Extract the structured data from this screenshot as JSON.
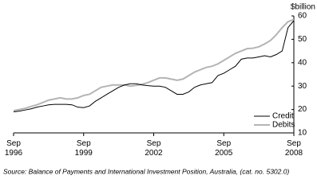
{
  "chart_data": {
    "type": "line",
    "unit_label": "$billion",
    "source": "Source: Balance of Payments and International Investment Position, Australia, (cat. no. 5302.0)",
    "categories": [
      "Sep 1996",
      null,
      null,
      null,
      null,
      null,
      null,
      null,
      null,
      null,
      null,
      null,
      "Sep 1999",
      null,
      null,
      null,
      null,
      null,
      null,
      null,
      null,
      null,
      null,
      null,
      "Sep 2002",
      null,
      null,
      null,
      null,
      null,
      null,
      null,
      null,
      null,
      null,
      null,
      "Sep 2005",
      null,
      null,
      null,
      null,
      null,
      null,
      null,
      null,
      null,
      null,
      null,
      "Sep 2008"
    ],
    "series": [
      {
        "name": "Credit",
        "color": "#000000",
        "values": [
          19,
          19.3,
          19.8,
          20.3,
          21,
          21.5,
          22,
          22.2,
          22.2,
          22.2,
          22,
          21,
          20.8,
          21.5,
          23.5,
          25,
          26.5,
          28,
          29.5,
          30.5,
          31,
          31,
          30.5,
          30.2,
          30,
          30,
          29.5,
          28,
          26.5,
          26.5,
          27.5,
          29.5,
          30.5,
          31,
          31.5,
          34.5,
          35.5,
          37,
          38.5,
          41.5,
          42,
          42,
          42.5,
          43,
          42.5,
          43.5,
          45,
          55,
          58
        ]
      },
      {
        "name": "Debits",
        "color": "#b4b4b4",
        "values": [
          19.5,
          20,
          20.5,
          21.3,
          22,
          23,
          24,
          24.5,
          25,
          24.5,
          24.5,
          25,
          26,
          26.5,
          28,
          29.5,
          30,
          30.5,
          30.5,
          30.5,
          30,
          30.3,
          30.8,
          31.5,
          32.5,
          33.5,
          33.5,
          33,
          32.5,
          33,
          34.5,
          36,
          37,
          38,
          38.5,
          39.5,
          41,
          42.5,
          44,
          45,
          46,
          46.2,
          46.8,
          48,
          49.5,
          52,
          55,
          57.5,
          58.5
        ]
      }
    ],
    "ylim": [
      10,
      60
    ],
    "yticks": [
      10,
      20,
      30,
      40,
      50,
      60
    ],
    "y_axis_side": "right",
    "grid": false,
    "legend": "bottom-right"
  }
}
